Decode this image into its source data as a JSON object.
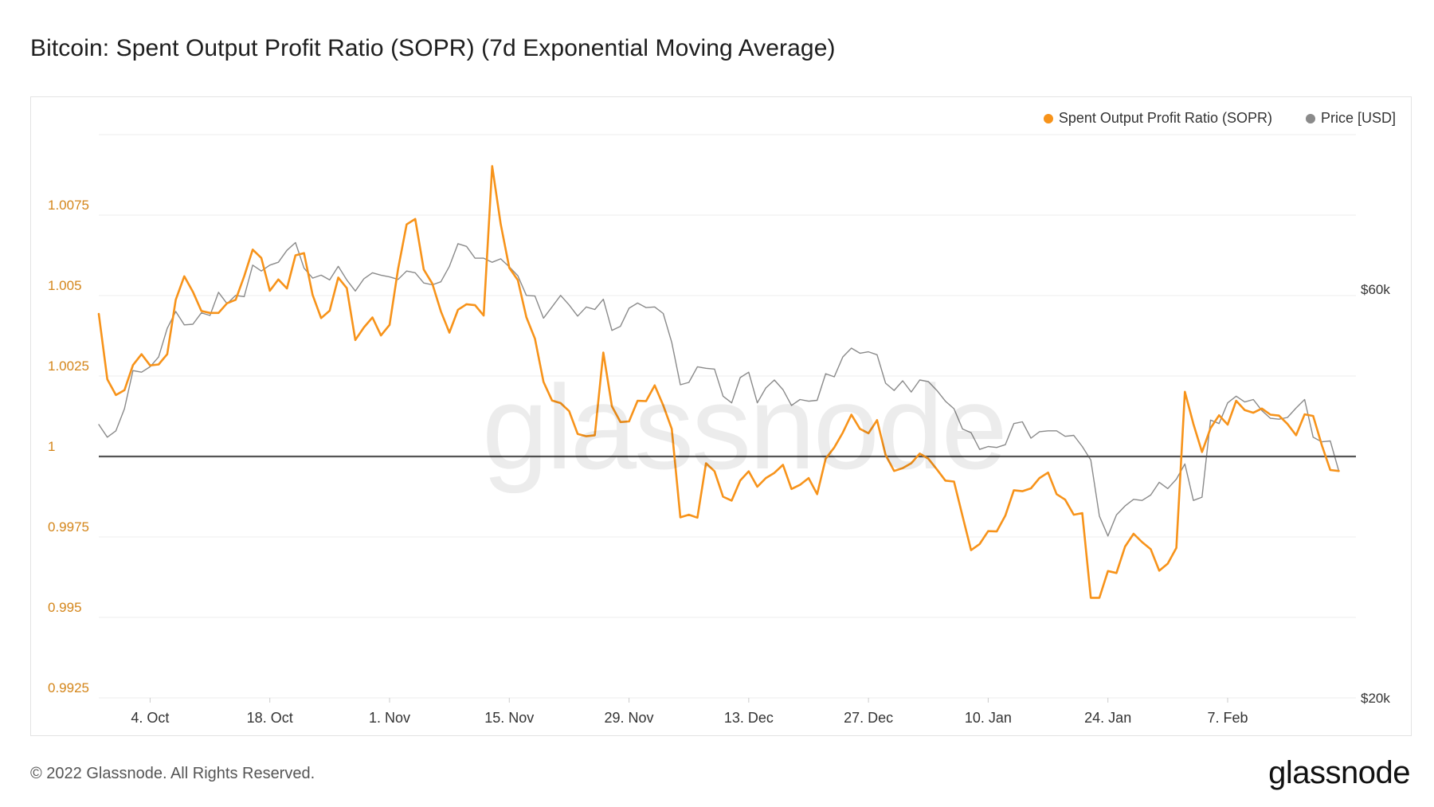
{
  "header": {
    "title": "Bitcoin: Spent Output Profit Ratio (SOPR) (7d Exponential Moving Average)"
  },
  "footer": {
    "copyright": "© 2022 Glassnode. All Rights Reserved.",
    "logo": "glassnode"
  },
  "watermark": "glassnode",
  "colors": {
    "sopr": "#f7931a",
    "price": "#8a8a8a",
    "baseline": "#555555",
    "sopr_axis": "#d4861b"
  },
  "chart_data": {
    "type": "line",
    "title": "Bitcoin: Spent Output Profit Ratio (SOPR) (7d Exponential Moving Average)",
    "legend_position": "top-right",
    "grid": true,
    "y_left": {
      "ticks": [
        {
          "value": 0.9925,
          "label": "0.9925"
        },
        {
          "value": 0.995,
          "label": "0.995"
        },
        {
          "value": 0.9975,
          "label": "0.9975"
        },
        {
          "value": 1.0,
          "label": "1"
        },
        {
          "value": 1.0025,
          "label": "1.0025"
        },
        {
          "value": 1.005,
          "label": "1.005"
        },
        {
          "value": 1.0075,
          "label": "1.0075"
        }
      ],
      "range": [
        0.9925,
        1.0101
      ]
    },
    "y_right": {
      "scale": "log",
      "ticks": [
        {
          "value": 20000,
          "label": "$20k"
        },
        {
          "value": 60000,
          "label": "$60k"
        }
      ]
    },
    "x_ticks": [
      {
        "date": "2021-10-04",
        "label": "4. Oct"
      },
      {
        "date": "2021-10-18",
        "label": "18. Oct"
      },
      {
        "date": "2021-11-01",
        "label": "1. Nov"
      },
      {
        "date": "2021-11-15",
        "label": "15. Nov"
      },
      {
        "date": "2021-11-29",
        "label": "29. Nov"
      },
      {
        "date": "2021-12-13",
        "label": "13. Dec"
      },
      {
        "date": "2021-12-27",
        "label": "27. Dec"
      },
      {
        "date": "2022-01-10",
        "label": "10. Jan"
      },
      {
        "date": "2022-01-24",
        "label": "24. Jan"
      },
      {
        "date": "2022-02-07",
        "label": "7. Feb"
      }
    ],
    "x_range": [
      "2021-09-28",
      "2022-02-22"
    ],
    "baseline": 1,
    "series": [
      {
        "name": "Spent Output Profit Ratio (SOPR)",
        "axis": "left",
        "start_date": "2021-09-28",
        "values": [
          1.00443,
          1.0024,
          1.00191,
          1.00206,
          1.00284,
          1.00318,
          1.00283,
          1.00286,
          1.00318,
          1.00487,
          1.0056,
          1.00512,
          1.00452,
          1.00446,
          1.00446,
          1.00476,
          1.00487,
          1.0056,
          1.00643,
          1.00617,
          1.00515,
          1.0055,
          1.00522,
          1.00625,
          1.00632,
          1.00502,
          1.0043,
          1.00453,
          1.00556,
          1.00523,
          1.00362,
          1.00401,
          1.00432,
          1.00376,
          1.00409,
          1.00583,
          1.00721,
          1.00738,
          1.00581,
          1.00537,
          1.00451,
          1.00385,
          1.00456,
          1.00473,
          1.0047,
          1.00438,
          1.00902,
          1.00722,
          1.00586,
          1.00548,
          1.00433,
          1.00366,
          1.00232,
          1.00174,
          1.00166,
          1.00141,
          1.0007,
          1.00063,
          1.00066,
          1.00323,
          1.00156,
          1.00107,
          1.00109,
          1.00173,
          1.00172,
          1.00221,
          1.00159,
          1.00086,
          0.99811,
          0.99819,
          0.9981,
          0.99979,
          0.99954,
          0.99875,
          0.99863,
          0.99925,
          0.99954,
          0.99906,
          0.99933,
          0.99949,
          0.99974,
          0.99899,
          0.99912,
          0.99933,
          0.99883,
          0.99993,
          1.00028,
          1.00074,
          1.0013,
          1.00086,
          1.00072,
          1.00113,
          1.00005,
          0.99955,
          0.99964,
          0.99979,
          1.00009,
          0.99993,
          0.9996,
          0.99925,
          0.99922,
          0.99815,
          0.99709,
          0.99728,
          0.99768,
          0.99767,
          0.99816,
          0.99895,
          0.99892,
          0.99901,
          0.99933,
          0.9995,
          0.99883,
          0.99866,
          0.99819,
          0.99824,
          0.99561,
          0.99561,
          0.99644,
          0.99638,
          0.9972,
          0.9976,
          0.99734,
          0.99712,
          0.99645,
          0.99667,
          0.99716,
          1.00201,
          1.00101,
          1.00014,
          1.00088,
          1.00128,
          1.00099,
          1.00173,
          1.00144,
          1.00136,
          1.00149,
          1.0013,
          1.00127,
          1.00101,
          1.00066,
          1.00131,
          1.00126,
          1.00036,
          0.99958,
          0.99955
        ]
      },
      {
        "name": "Price [USD]",
        "axis": "right",
        "start_date": "2021-09-28",
        "values": [
          41700,
          40300,
          41000,
          43500,
          48200,
          48000,
          48700,
          50000,
          54000,
          56500,
          54500,
          54600,
          56300,
          55900,
          59500,
          57700,
          59000,
          58800,
          64000,
          63000,
          64000,
          64500,
          66600,
          68000,
          63500,
          61800,
          62300,
          61500,
          63800,
          61500,
          59700,
          61700,
          62700,
          62300,
          62000,
          61600,
          63000,
          62700,
          61000,
          60700,
          61200,
          63800,
          67800,
          67300,
          65200,
          65200,
          64500,
          65100,
          63700,
          62200,
          59000,
          58900,
          55500,
          57200,
          59000,
          57500,
          55800,
          57200,
          56800,
          58400,
          53700,
          54300,
          57000,
          57800,
          57100,
          57200,
          56200,
          52000,
          46400,
          46700,
          48700,
          48500,
          48400,
          45000,
          44200,
          47300,
          48000,
          44200,
          46000,
          47000,
          45800,
          43900,
          44600,
          44400,
          44500,
          47800,
          47400,
          50000,
          51200,
          50500,
          50700,
          50300,
          46600,
          45700,
          46900,
          45500,
          47000,
          46800,
          45700,
          44400,
          43500,
          41200,
          40800,
          39000,
          39300,
          39200,
          39500,
          41800,
          42000,
          40200,
          40900,
          41000,
          41000,
          40400,
          40500,
          39300,
          37900,
          32600,
          30900,
          32700,
          33500,
          34100,
          34000,
          34500,
          35700,
          35100,
          36000,
          37500,
          34000,
          34300,
          42200,
          41800,
          44200,
          45000,
          44300,
          44600,
          43300,
          42400,
          42300,
          42500,
          43600,
          44600,
          40300,
          39800,
          39900,
          36800
        ]
      }
    ]
  }
}
